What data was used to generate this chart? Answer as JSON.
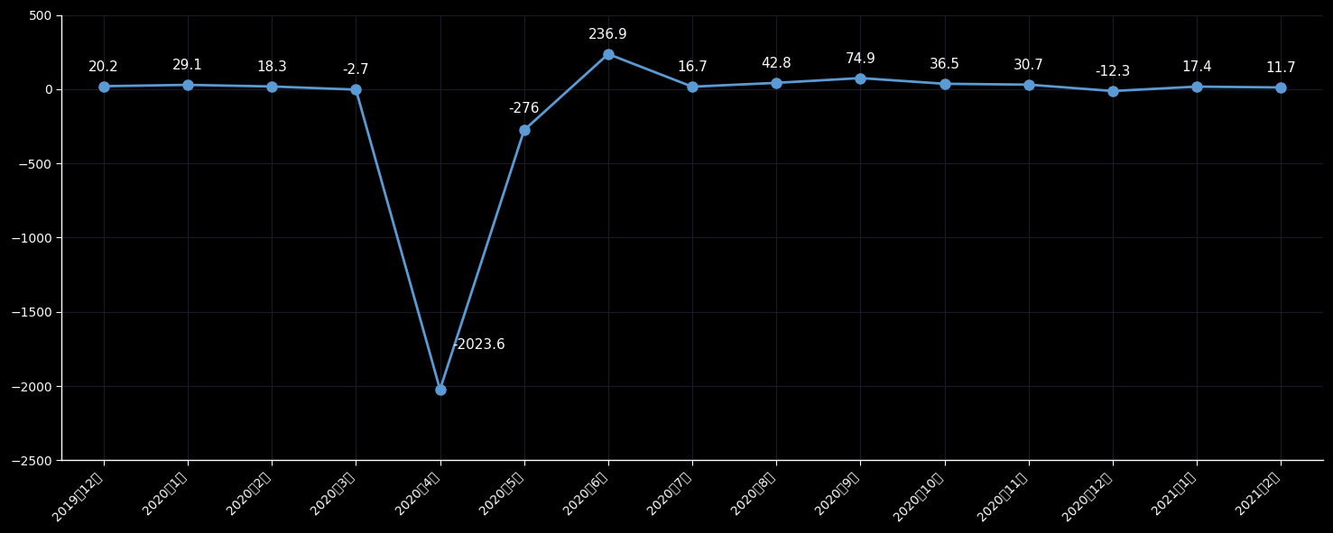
{
  "categories": [
    "2019年12月",
    "2020年1月",
    "2020年2月",
    "2020年3月",
    "2020年4月",
    "2020年5月",
    "2020年6月",
    "2020年7月",
    "2020年8月",
    "2020年9月",
    "2020年10月",
    "2020年11月",
    "2020年12月",
    "2021年1月",
    "2021年2月"
  ],
  "values": [
    20.2,
    29.1,
    18.3,
    -2.7,
    -2023.6,
    -276,
    236.9,
    16.7,
    42.8,
    74.9,
    36.5,
    30.7,
    -12.3,
    17.4,
    11.7
  ],
  "line_color": "#5B9BD5",
  "marker_color": "#5B9BD5",
  "background_color": "#000000",
  "plot_bg_color": "#000000",
  "grid_color": "#1a1a2e",
  "text_color": "#ffffff",
  "spine_color": "#ffffff",
  "ylim": [
    -2500,
    500
  ],
  "yticks": [
    -2500,
    -2000,
    -1500,
    -1000,
    -500,
    0,
    500
  ],
  "label_fontsize": 11,
  "tick_fontsize": 10,
  "marker_size": 8
}
